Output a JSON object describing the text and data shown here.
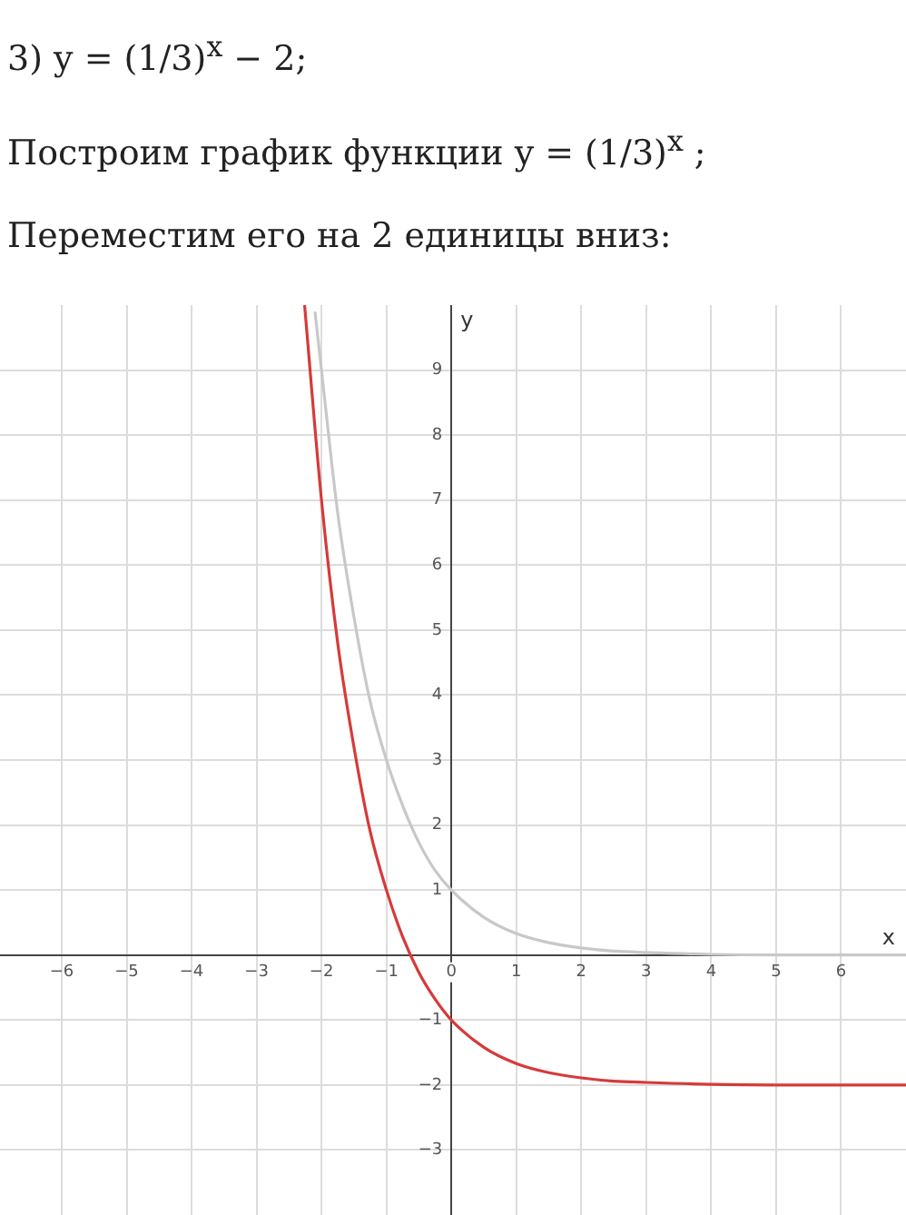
{
  "chart_data": {
    "type": "line",
    "title": "3) y = (1/3)$^{x}$ − 2;",
    "annotations": [
      "Построим график функции y = (1/3)$^{x}$ ;",
      "Переместим его на 2 единицы вниз:"
    ],
    "xlabel": "x",
    "ylabel": "y",
    "series": [
      {
        "color": "#c8c8c8",
        "x": [
          -2.1,
          -2,
          -1.75,
          -1.5,
          -1.25,
          -1,
          -0.75,
          -0.5,
          -0.25,
          0,
          0.5,
          1,
          1.5,
          2,
          2.5,
          3,
          4,
          5,
          7
        ],
        "values": [
          9.9,
          9,
          6.8,
          5.2,
          3.9,
          3,
          2.3,
          1.73,
          1.3,
          1,
          0.58,
          0.33,
          0.19,
          0.11,
          0.06,
          0.04,
          0.01,
          0,
          0
        ]
      },
      {
        "color": "#d63a3a",
        "x": [
          -2.26,
          -2,
          -1.75,
          -1.5,
          -1.25,
          -1,
          -0.75,
          -0.5,
          -0.25,
          0,
          0.5,
          1,
          1.5,
          2,
          2.5,
          3,
          4,
          5,
          7
        ],
        "values": [
          10,
          7,
          4.8,
          3.2,
          1.9,
          1,
          0.28,
          -0.27,
          -0.68,
          -1,
          -1.42,
          -1.67,
          -1.81,
          -1.89,
          -1.94,
          -1.96,
          -1.99,
          -2,
          -2
        ]
      }
    ],
    "xlim": [
      -6.95,
      7
    ],
    "ylim": [
      -4,
      10
    ],
    "xticks": [
      -6,
      -5,
      -4,
      -3,
      -2,
      -1,
      0,
      1,
      2,
      3,
      4,
      5,
      6
    ],
    "yticks": [
      -3,
      -2,
      -1,
      {
        "value": 0,
        "label": null
      },
      1,
      2,
      3,
      4,
      5,
      6,
      7,
      8,
      9
    ],
    "grid": true,
    "legend": false,
    "marker": "none",
    "line_style": "solid"
  }
}
